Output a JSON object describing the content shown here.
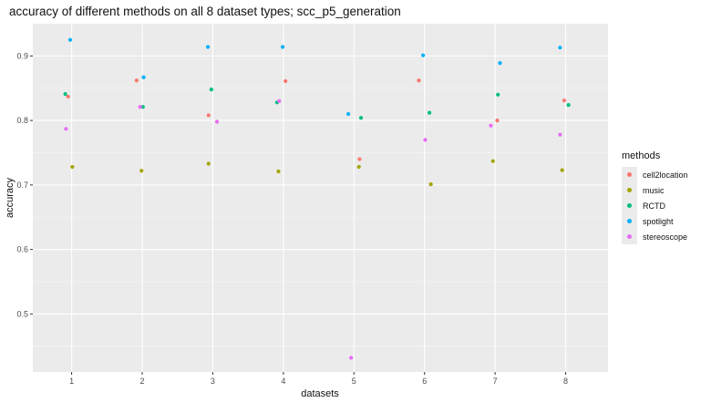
{
  "chart_data": {
    "type": "scatter",
    "title": "accuracy of different methods on all 8 dataset types; scc_p5_generation",
    "xlabel": "datasets",
    "ylabel": "accuracy",
    "x_ticks": [
      "1",
      "2",
      "3",
      "4",
      "5",
      "6",
      "7",
      "8"
    ],
    "y_ticks": [
      "0.5",
      "0.6",
      "0.7",
      "0.8",
      "0.9"
    ],
    "xlim": [
      0.45,
      8.6
    ],
    "ylim": [
      0.41,
      0.95
    ],
    "grid": true,
    "legend_title": "methods",
    "legend_position": "right",
    "series": [
      {
        "name": "cell2location",
        "color": "#F8766D",
        "points": [
          [
            0.95,
            0.837
          ],
          [
            1.92,
            0.862
          ],
          [
            2.94,
            0.808
          ],
          [
            4.03,
            0.861
          ],
          [
            5.08,
            0.74
          ],
          [
            5.92,
            0.862
          ],
          [
            7.03,
            0.8
          ],
          [
            7.98,
            0.831
          ]
        ]
      },
      {
        "name": "music",
        "color": "#A3A500",
        "points": [
          [
            1.01,
            0.728
          ],
          [
            1.99,
            0.722
          ],
          [
            2.94,
            0.733
          ],
          [
            3.93,
            0.721
          ],
          [
            5.07,
            0.728
          ],
          [
            6.09,
            0.701
          ],
          [
            6.97,
            0.737
          ],
          [
            7.95,
            0.723
          ]
        ]
      },
      {
        "name": "RCTD",
        "color": "#00BF7D",
        "points": [
          [
            0.91,
            0.841
          ],
          [
            2.01,
            0.821
          ],
          [
            2.98,
            0.848
          ],
          [
            3.91,
            0.828
          ],
          [
            5.1,
            0.804
          ],
          [
            6.07,
            0.812
          ],
          [
            7.04,
            0.84
          ],
          [
            8.04,
            0.824
          ]
        ]
      },
      {
        "name": "spotlight",
        "color": "#00B0F6",
        "points": [
          [
            0.98,
            0.925
          ],
          [
            2.02,
            0.867
          ],
          [
            2.93,
            0.914
          ],
          [
            3.99,
            0.914
          ],
          [
            4.92,
            0.81
          ],
          [
            5.98,
            0.901
          ],
          [
            7.07,
            0.889
          ],
          [
            7.92,
            0.913
          ]
        ]
      },
      {
        "name": "stereoscope",
        "color": "#E76BF3",
        "points": [
          [
            0.92,
            0.787
          ],
          [
            1.97,
            0.821
          ],
          [
            3.06,
            0.798
          ],
          [
            3.94,
            0.83
          ],
          [
            4.96,
            0.432
          ],
          [
            6.01,
            0.77
          ],
          [
            6.94,
            0.792
          ],
          [
            7.92,
            0.778
          ]
        ]
      }
    ]
  }
}
